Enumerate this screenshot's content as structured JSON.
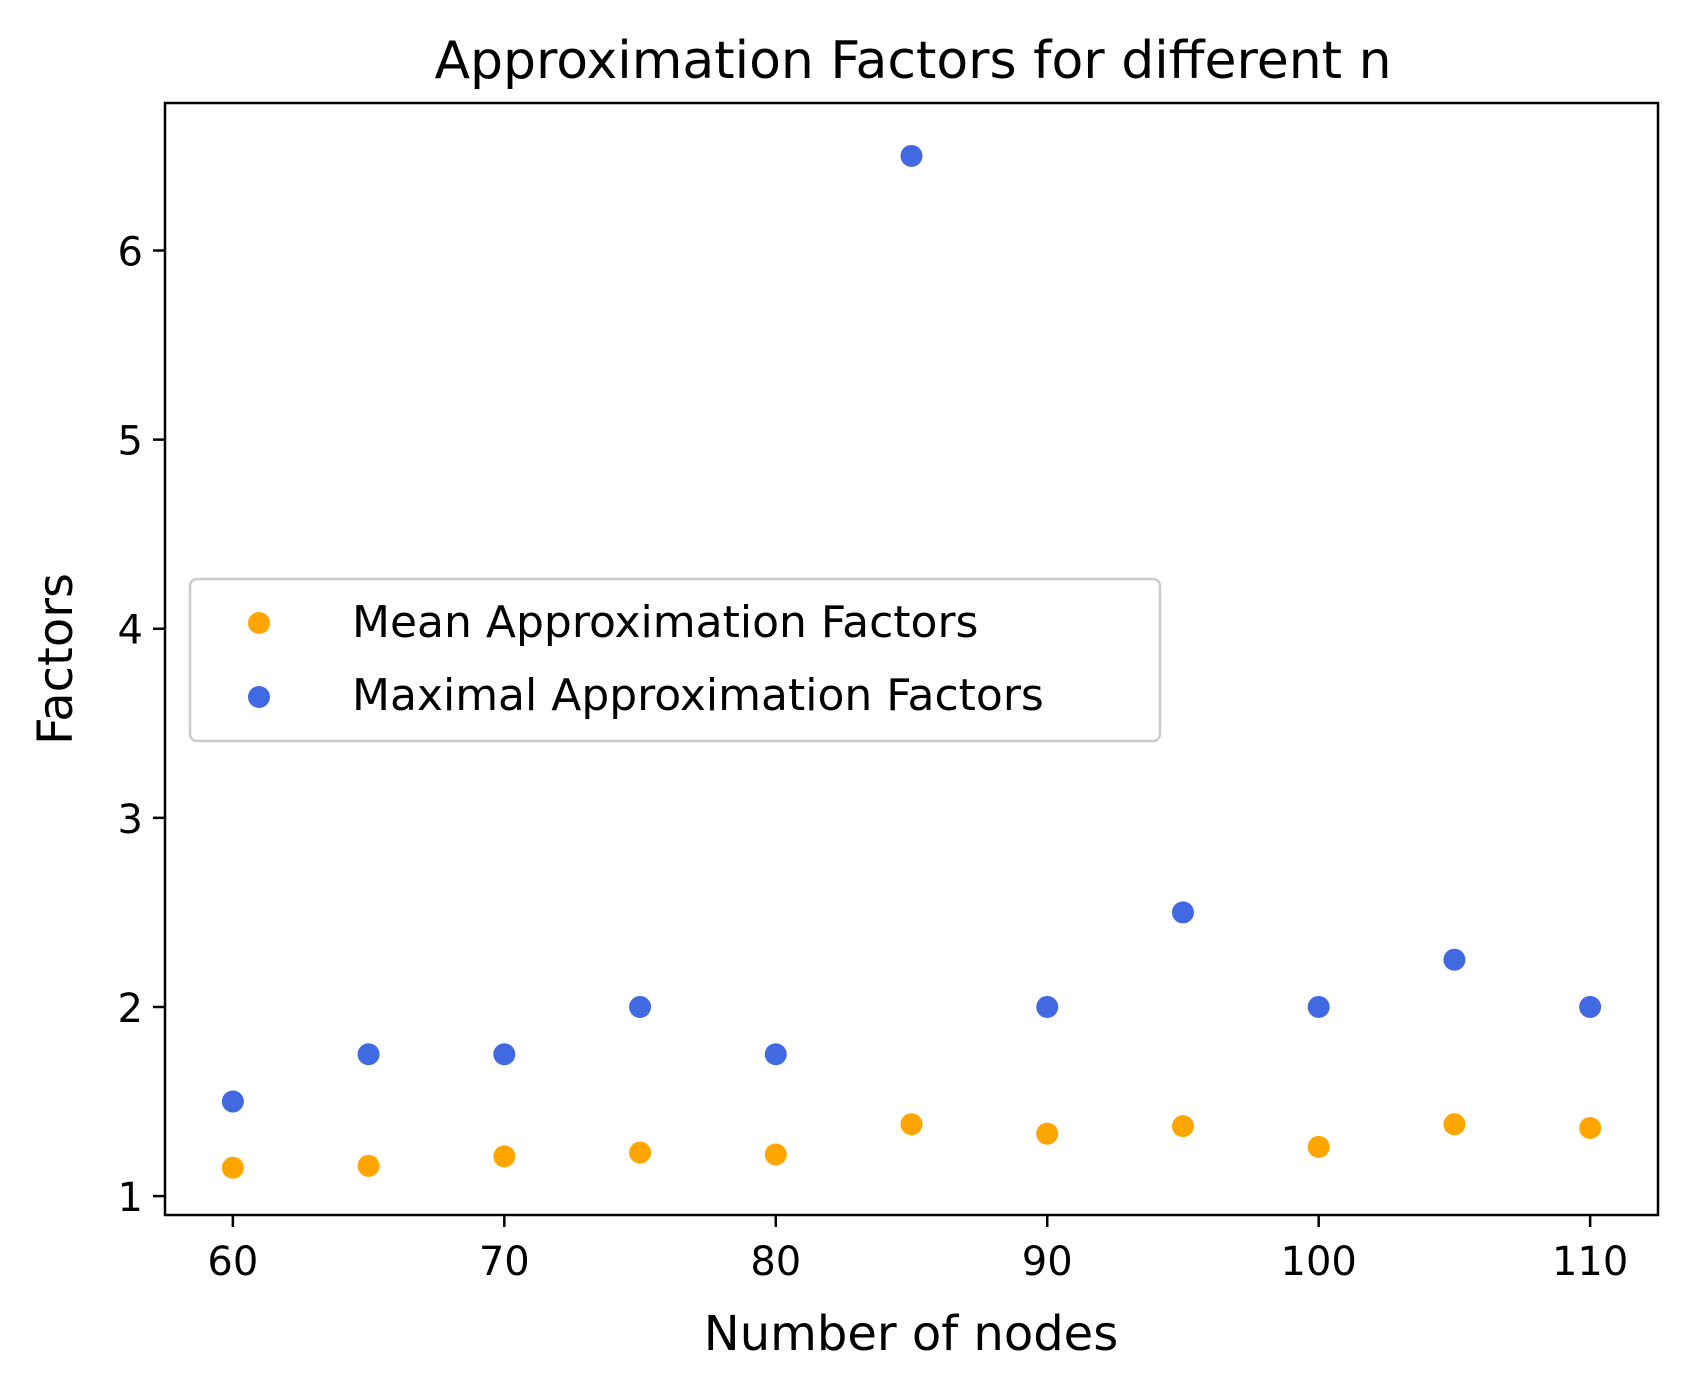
{
  "chart_data": {
    "type": "scatter",
    "title": "Approximation Factors for different n",
    "xlabel": "Number of nodes",
    "ylabel": "Factors",
    "xlim": [
      57.5,
      112.5
    ],
    "ylim": [
      0.9,
      6.78
    ],
    "xticks": [
      60,
      70,
      80,
      90,
      100,
      110
    ],
    "yticks": [
      1,
      2,
      3,
      4,
      5,
      6
    ],
    "grid": false,
    "legend_position": "center-left",
    "series": [
      {
        "name": "Mean Approximation Factors",
        "color": "#FFA500",
        "x": [
          60,
          65,
          70,
          75,
          80,
          85,
          90,
          95,
          100,
          105,
          110
        ],
        "y": [
          1.15,
          1.16,
          1.21,
          1.23,
          1.22,
          1.38,
          1.33,
          1.37,
          1.26,
          1.38,
          1.36
        ]
      },
      {
        "name": "Maximal Approximation Factors",
        "color": "#4169E1",
        "x": [
          60,
          65,
          70,
          75,
          80,
          85,
          90,
          95,
          100,
          105,
          110
        ],
        "y": [
          1.5,
          1.75,
          1.75,
          2.0,
          1.75,
          6.5,
          2.0,
          2.5,
          2.0,
          2.25,
          2.0
        ]
      }
    ]
  }
}
